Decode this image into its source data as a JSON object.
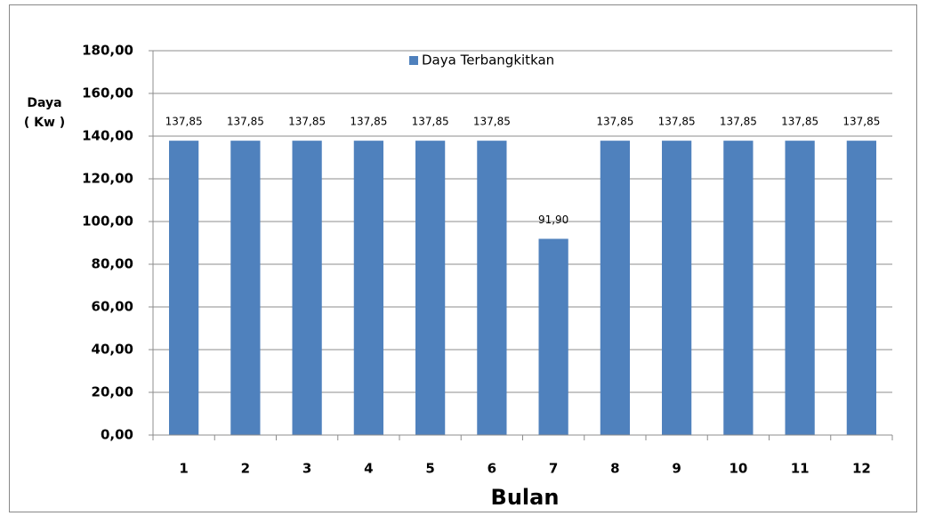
{
  "chart_data": {
    "type": "bar",
    "legend_label": "Daya Terbangkitkan",
    "xlabel": "Bulan",
    "ylabel": [
      "Daya",
      "( Kw )"
    ],
    "categories": [
      "1",
      "2",
      "3",
      "4",
      "5",
      "6",
      "7",
      "8",
      "9",
      "10",
      "11",
      "12"
    ],
    "values": [
      137.85,
      137.85,
      137.85,
      137.85,
      137.85,
      137.85,
      91.9,
      137.85,
      137.85,
      137.85,
      137.85,
      137.85
    ],
    "value_labels": [
      "137,85",
      "137,85",
      "137,85",
      "137,85",
      "137,85",
      "137,85",
      "91,90",
      "137,85",
      "137,85",
      "137,85",
      "137,85",
      "137,85"
    ],
    "color": "#4f81bd",
    "ylim": [
      0,
      180
    ],
    "yticks": [
      {
        "value": 0,
        "label": "0,00"
      },
      {
        "value": 20,
        "label": "20,00"
      },
      {
        "value": 40,
        "label": "40,00"
      },
      {
        "value": 60,
        "label": "60,00"
      },
      {
        "value": 80,
        "label": "80,00"
      },
      {
        "value": 100,
        "label": "100,00"
      },
      {
        "value": 120,
        "label": "120,00"
      },
      {
        "value": 140,
        "label": "140,00"
      },
      {
        "value": 160,
        "label": "160,00"
      },
      {
        "value": 180,
        "label": "180,00"
      }
    ],
    "grid": true
  }
}
